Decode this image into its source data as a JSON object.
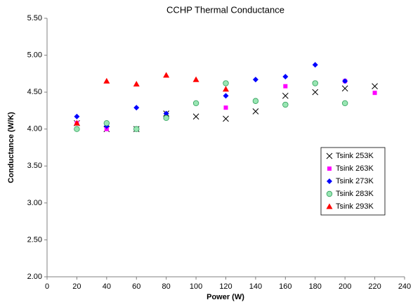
{
  "chart_data": {
    "type": "scatter",
    "title": "CCHP Thermal Conductance",
    "x_label": "Power (W)",
    "y_label": "Conductance (W/K)",
    "xlim": [
      0,
      240
    ],
    "xticks": [
      0,
      20,
      40,
      60,
      80,
      100,
      120,
      140,
      160,
      180,
      200,
      220,
      240
    ],
    "ylim": [
      2,
      5.5
    ],
    "yticks": [
      {
        "value": 2,
        "label": "2.00"
      },
      {
        "value": 2.5,
        "label": "2.50"
      },
      {
        "value": 3,
        "label": "3.00"
      },
      {
        "value": 3.5,
        "label": "3.50"
      },
      {
        "value": 4,
        "label": "4.00"
      },
      {
        "value": 4.5,
        "label": "4.50"
      },
      {
        "value": 5,
        "label": "5.00"
      },
      {
        "value": 5.5,
        "label": "5.50"
      }
    ],
    "grid": false,
    "legend": "right",
    "series": [
      {
        "name": "Tsink 253K",
        "color": "#000000",
        "marker": "x",
        "x": [
          20,
          40,
          60,
          80,
          100,
          120,
          140,
          160,
          180,
          200,
          220
        ],
        "values": [
          4.08,
          4.0,
          4.0,
          4.21,
          4.17,
          4.14,
          4.24,
          4.45,
          4.5,
          4.55,
          4.58
        ]
      },
      {
        "name": "Tsink 263K",
        "color": "#ff00ff",
        "marker": "square",
        "x": [
          20,
          40,
          120,
          160,
          200,
          220
        ],
        "values": [
          4.08,
          4.0,
          4.29,
          4.58,
          4.65,
          4.49
        ]
      },
      {
        "name": "Tsink 273K",
        "color": "#0000ff",
        "marker": "diamond",
        "x": [
          20,
          40,
          60,
          80,
          100,
          120,
          140,
          160,
          180,
          200
        ],
        "values": [
          4.17,
          4.04,
          4.29,
          4.21,
          4.35,
          4.45,
          4.67,
          4.71,
          4.87,
          4.65
        ]
      },
      {
        "name": "Tsink 283K",
        "color": "#99e6b3",
        "marker": "circle",
        "x": [
          20,
          40,
          60,
          80,
          100,
          120,
          140,
          160,
          180,
          200
        ],
        "values": [
          4.0,
          4.08,
          4.0,
          4.15,
          4.35,
          4.62,
          4.38,
          4.33,
          4.62,
          4.35
        ]
      },
      {
        "name": "Tsink 293K",
        "color": "#ff0000",
        "marker": "triangle",
        "x": [
          20,
          40,
          60,
          80,
          100,
          120
        ],
        "values": [
          4.08,
          4.65,
          4.61,
          4.73,
          4.67,
          4.54
        ]
      }
    ]
  }
}
